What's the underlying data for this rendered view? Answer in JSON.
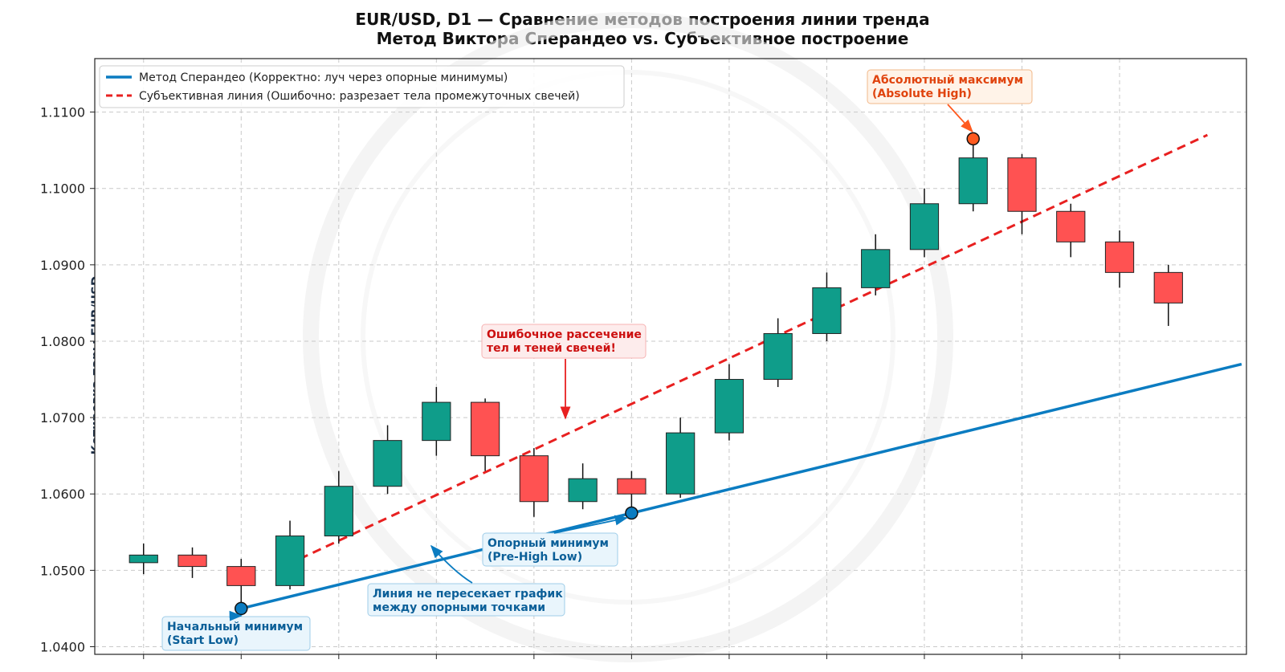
{
  "header": {
    "title_line1": "EUR/USD, D1 — Сравнение методов построения линии тренда",
    "title_line2": "Метод Виктора Сперандео vs. Субъективное построение"
  },
  "colors": {
    "bull": "#0f9d8a",
    "bear": "#ff5252",
    "sperandeo": "#0b7cc1",
    "subjective": "#e82020",
    "high_marker": "#ff5a1f"
  },
  "chart_data": {
    "type": "candlestick",
    "title": "EUR/USD, D1 — Сравнение методов построения линии тренда",
    "subtitle": "Метод Виктора Сперандео vs. Субъективное построение",
    "ylabel": "Котировка пары EUR/USD",
    "xlabel": "",
    "ylim": [
      1.039,
      1.117
    ],
    "xlim": [
      -1.0,
      22.6
    ],
    "grid": true,
    "legend_position": "top-left",
    "y_ticks": [
      "1.0400",
      "1.0500",
      "1.0600",
      "1.0700",
      "1.0800",
      "1.0900",
      "1.1000",
      "1.1100"
    ],
    "y_tick_values": [
      1.04,
      1.05,
      1.06,
      1.07,
      1.08,
      1.09,
      1.1,
      1.11
    ],
    "x_grid": [
      0,
      2,
      4,
      6,
      8,
      10,
      12,
      14,
      16,
      18,
      20
    ],
    "candles": [
      {
        "x": 0,
        "open": 1.051,
        "high": 1.0535,
        "low": 1.0495,
        "close": 1.052
      },
      {
        "x": 1,
        "open": 1.052,
        "high": 1.053,
        "low": 1.049,
        "close": 1.0505
      },
      {
        "x": 2,
        "open": 1.0505,
        "high": 1.0515,
        "low": 1.045,
        "close": 1.048
      },
      {
        "x": 3,
        "open": 1.048,
        "high": 1.0565,
        "low": 1.0475,
        "close": 1.0545
      },
      {
        "x": 4,
        "open": 1.0545,
        "high": 1.063,
        "low": 1.0535,
        "close": 1.061
      },
      {
        "x": 5,
        "open": 1.061,
        "high": 1.069,
        "low": 1.06,
        "close": 1.067
      },
      {
        "x": 6,
        "open": 1.067,
        "high": 1.074,
        "low": 1.065,
        "close": 1.072
      },
      {
        "x": 7,
        "open": 1.072,
        "high": 1.0725,
        "low": 1.063,
        "close": 1.065
      },
      {
        "x": 8,
        "open": 1.065,
        "high": 1.066,
        "low": 1.057,
        "close": 1.059
      },
      {
        "x": 9,
        "open": 1.059,
        "high": 1.064,
        "low": 1.058,
        "close": 1.062
      },
      {
        "x": 10,
        "open": 1.062,
        "high": 1.063,
        "low": 1.0575,
        "close": 1.06
      },
      {
        "x": 11,
        "open": 1.06,
        "high": 1.07,
        "low": 1.0595,
        "close": 1.068
      },
      {
        "x": 12,
        "open": 1.068,
        "high": 1.077,
        "low": 1.067,
        "close": 1.075
      },
      {
        "x": 13,
        "open": 1.075,
        "high": 1.083,
        "low": 1.074,
        "close": 1.081
      },
      {
        "x": 14,
        "open": 1.081,
        "high": 1.089,
        "low": 1.08,
        "close": 1.087
      },
      {
        "x": 15,
        "open": 1.087,
        "high": 1.094,
        "low": 1.086,
        "close": 1.092
      },
      {
        "x": 16,
        "open": 1.092,
        "high": 1.1,
        "low": 1.091,
        "close": 1.098
      },
      {
        "x": 17,
        "open": 1.098,
        "high": 1.1065,
        "low": 1.097,
        "close": 1.104
      },
      {
        "x": 18,
        "open": 1.104,
        "high": 1.1045,
        "low": 1.094,
        "close": 1.097
      },
      {
        "x": 19,
        "open": 1.097,
        "high": 1.098,
        "low": 1.091,
        "close": 1.093
      },
      {
        "x": 20,
        "open": 1.093,
        "high": 1.0945,
        "low": 1.087,
        "close": 1.089
      },
      {
        "x": 21,
        "open": 1.089,
        "high": 1.09,
        "low": 1.082,
        "close": 1.085
      }
    ],
    "series": [
      {
        "name": "Метод Сперандео (Корректно: луч через опорные минимумы)",
        "style": "solid",
        "points": [
          [
            2,
            1.045
          ],
          [
            22.5,
            1.077
          ]
        ]
      },
      {
        "name": "Субъективная линия (Ошибочно: разрезает тела промежуточных свечей)",
        "style": "dashed",
        "points": [
          [
            3.2,
            1.0515
          ],
          [
            21.8,
            1.107
          ]
        ]
      }
    ],
    "markers": [
      {
        "name": "start_low",
        "x": 2,
        "y": 1.045
      },
      {
        "name": "pre_high_low",
        "x": 10,
        "y": 1.0575
      },
      {
        "name": "absolute_high",
        "x": 17,
        "y": 1.1065
      }
    ],
    "annotations": [
      {
        "id": "absolute_high",
        "text": [
          "Абсолютный максимум",
          "(Absolute High)"
        ]
      },
      {
        "id": "wrong_cut",
        "text": [
          "Ошибочное рассечение",
          "тел и теней свечей!"
        ]
      },
      {
        "id": "pre_high_low",
        "text": [
          "Опорный минимум",
          "(Pre-High Low)"
        ]
      },
      {
        "id": "line_note",
        "text": [
          "Линия не пересекает график",
          "между опорными точками"
        ]
      },
      {
        "id": "start_low",
        "text": [
          "Начальный минимум",
          "(Start Low)"
        ]
      }
    ]
  }
}
